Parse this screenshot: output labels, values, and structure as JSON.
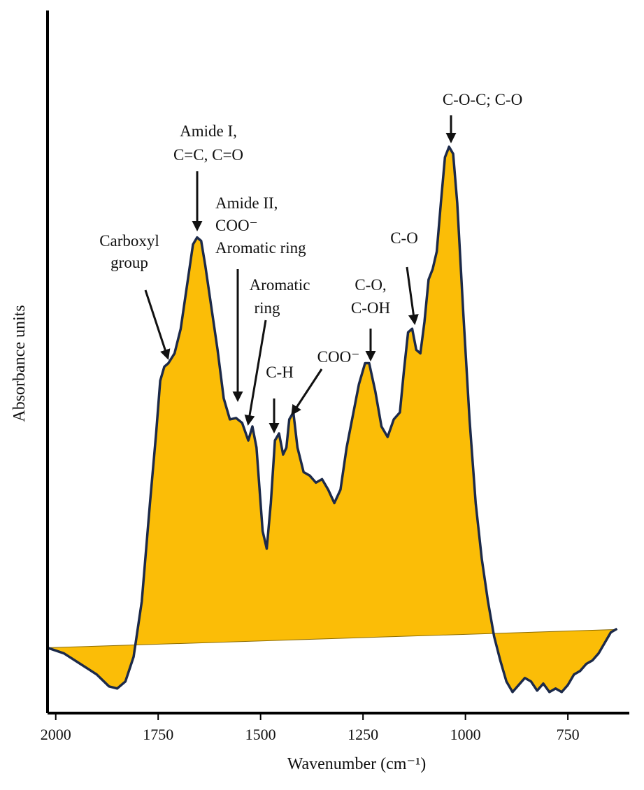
{
  "chart_data": {
    "type": "area",
    "x_label": "Wavenumber (cm⁻¹)",
    "y_label": "Absorbance units",
    "xlim": [
      2020,
      600
    ],
    "ylim": [
      0,
      100
    ],
    "xticks": [
      2000,
      1750,
      1500,
      1250,
      1000,
      750
    ],
    "color": "#fbbd07",
    "line_color": "#1c2a4a",
    "x": [
      2020,
      1980,
      1940,
      1900,
      1870,
      1850,
      1830,
      1810,
      1790,
      1770,
      1755,
      1745,
      1735,
      1725,
      1710,
      1695,
      1680,
      1665,
      1655,
      1645,
      1635,
      1620,
      1605,
      1590,
      1575,
      1560,
      1545,
      1530,
      1520,
      1510,
      1495,
      1485,
      1475,
      1465,
      1455,
      1445,
      1437,
      1430,
      1420,
      1410,
      1395,
      1380,
      1365,
      1350,
      1335,
      1320,
      1305,
      1290,
      1275,
      1260,
      1245,
      1235,
      1220,
      1205,
      1190,
      1175,
      1160,
      1150,
      1140,
      1130,
      1120,
      1110,
      1100,
      1090,
      1080,
      1070,
      1060,
      1050,
      1040,
      1030,
      1020,
      1005,
      990,
      975,
      960,
      945,
      930,
      915,
      900,
      885,
      870,
      855,
      840,
      825,
      810,
      795,
      780,
      765,
      750,
      735,
      720,
      705,
      690,
      675,
      660,
      645,
      630
    ],
    "values": [
      9.3,
      8.5,
      7.0,
      5.5,
      3.8,
      3.5,
      4.5,
      8.0,
      15.9,
      29.9,
      39.8,
      47.3,
      49.3,
      49.8,
      51.2,
      54.7,
      60.7,
      66.7,
      67.7,
      67.2,
      63.7,
      57.7,
      51.7,
      44.8,
      41.8,
      42.0,
      41.3,
      38.8,
      40.8,
      37.8,
      25.9,
      23.4,
      29.9,
      38.8,
      39.8,
      36.8,
      37.8,
      41.8,
      42.8,
      37.8,
      34.3,
      33.8,
      32.8,
      33.3,
      31.8,
      29.9,
      31.8,
      37.8,
      42.3,
      46.8,
      49.8,
      49.8,
      45.8,
      40.8,
      39.3,
      41.8,
      42.8,
      48.8,
      54.2,
      54.7,
      51.7,
      51.2,
      55.7,
      61.7,
      63.2,
      65.7,
      72.6,
      79.1,
      80.6,
      79.6,
      72.6,
      56.7,
      41.8,
      29.9,
      21.9,
      15.9,
      10.9,
      7.5,
      4.5,
      3.0,
      4.0,
      5.0,
      4.5,
      3.2,
      4.2,
      3.0,
      3.5,
      3.0,
      4.0,
      5.5,
      6.0,
      7.0,
      7.5,
      8.5,
      10.0,
      11.5,
      12.0
    ],
    "baseline": {
      "x": [
        2020,
        630
      ],
      "values": [
        9.3,
        11.9
      ]
    },
    "annotations": [
      {
        "lines": [
          "Carboxyl",
          "group"
        ]
      },
      {
        "lines": [
          "Amide I,",
          "C=C, C=O"
        ]
      },
      {
        "lines": [
          "Amide II,",
          "COO⁻",
          "Aromatic ring"
        ]
      },
      {
        "lines": [
          "Aromatic",
          "ring"
        ]
      },
      {
        "lines": [
          "C-H"
        ]
      },
      {
        "lines": [
          "COO⁻"
        ]
      },
      {
        "lines": [
          "C-O,",
          "C-OH"
        ]
      },
      {
        "lines": [
          "C-O"
        ]
      },
      {
        "lines": [
          "C-O-C; C-O"
        ]
      }
    ]
  }
}
